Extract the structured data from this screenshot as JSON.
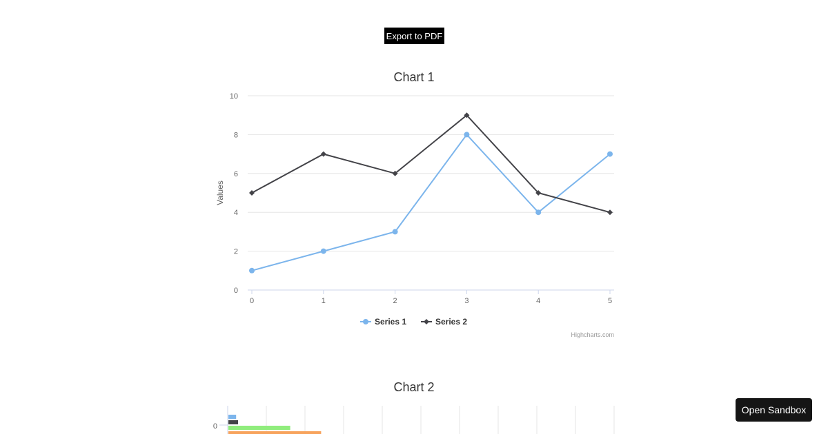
{
  "toolbar": {
    "export_label": "Export to PDF",
    "sandbox_label": "Open Sandbox"
  },
  "chart_data": [
    {
      "type": "line",
      "title": "Chart 1",
      "ylabel": "Values",
      "xlabel": "",
      "x": [
        0,
        1,
        2,
        3,
        4,
        5
      ],
      "xticks": [
        "0",
        "1",
        "2",
        "3",
        "4",
        "5"
      ],
      "yticks": [
        "0",
        "2",
        "4",
        "6",
        "8",
        "10"
      ],
      "ylim": [
        0,
        10
      ],
      "grid": true,
      "legend": "bottom-center",
      "credits": "Highcharts.com",
      "series": [
        {
          "name": "Series 1",
          "values": [
            1,
            2,
            3,
            8,
            4,
            7
          ],
          "color": "#7cb5ec",
          "marker": "circle"
        },
        {
          "name": "Series 2",
          "values": [
            5,
            7,
            6,
            9,
            5,
            4
          ],
          "color": "#434348",
          "marker": "diamond"
        }
      ]
    },
    {
      "type": "bar",
      "orientation": "horizontal",
      "title": "Chart 2",
      "categories": [
        "0"
      ],
      "xlim": [
        0,
        10
      ],
      "grid": true,
      "series": [
        {
          "values": [
            0.2
          ],
          "color": "#7cb5ec"
        },
        {
          "values": [
            0.25
          ],
          "color": "#434348"
        },
        {
          "values": [
            1.6
          ],
          "color": "#90ed7d"
        },
        {
          "values": [
            2.4
          ],
          "color": "#f7a35c"
        }
      ]
    }
  ]
}
